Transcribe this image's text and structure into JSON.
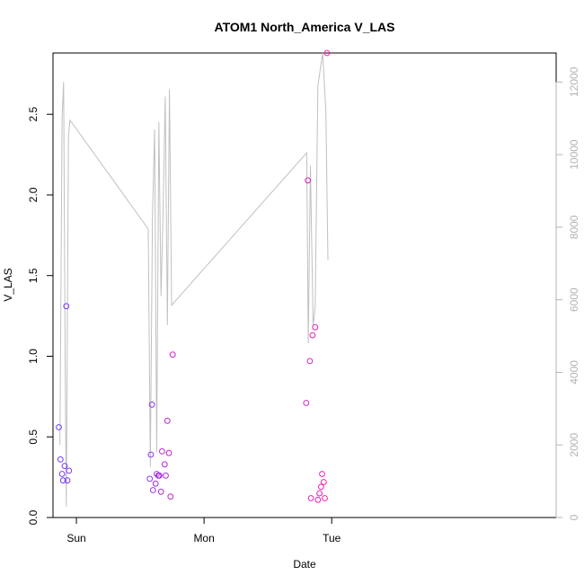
{
  "chart_data": {
    "type": "scatter",
    "title": "ATOM1 North_America V_LAS",
    "xlabel": "Date",
    "ylabel": "V_LAS",
    "x_axis": {
      "kind": "time",
      "range_hours": [
        -4.4,
        90.2
      ],
      "ticks": [
        {
          "label": "Sun",
          "hours": 0
        },
        {
          "label": "Mon",
          "hours": 24
        },
        {
          "label": "Tue",
          "hours": 48
        }
      ]
    },
    "y_left": {
      "range": [
        0,
        2.88
      ],
      "ticks": [
        0.0,
        0.5,
        1.0,
        1.5,
        2.0,
        2.5
      ],
      "tick_labels": [
        "0.0",
        "0.5",
        "1.0",
        "1.5",
        "2.0",
        "2.5"
      ]
    },
    "y_right": {
      "range": [
        0,
        12800
      ],
      "ticks": [
        0,
        2000,
        4000,
        6000,
        8000,
        10000,
        12000
      ],
      "tick_labels": [
        "0",
        "2000",
        "4000",
        "6000",
        "8000",
        "10000",
        "12000"
      ],
      "color": "#b3b3b3"
    },
    "grid": false,
    "colors": {
      "point_start": "#6a3bff",
      "point_end": "#ff1aa6",
      "line": "#c0c0c0"
    },
    "points": [
      {
        "x": -3.3,
        "y": 0.56
      },
      {
        "x": -3.0,
        "y": 0.36
      },
      {
        "x": -2.7,
        "y": 0.27
      },
      {
        "x": -2.5,
        "y": 0.23
      },
      {
        "x": -2.2,
        "y": 0.32
      },
      {
        "x": -1.9,
        "y": 1.31
      },
      {
        "x": -1.7,
        "y": 0.23
      },
      {
        "x": -1.4,
        "y": 0.29
      },
      {
        "x": 13.8,
        "y": 0.24
      },
      {
        "x": 14.0,
        "y": 0.39
      },
      {
        "x": 14.2,
        "y": 0.7
      },
      {
        "x": 14.4,
        "y": 0.17
      },
      {
        "x": 14.9,
        "y": 0.21
      },
      {
        "x": 15.1,
        "y": 0.27
      },
      {
        "x": 15.4,
        "y": 0.26
      },
      {
        "x": 15.6,
        "y": 0.26
      },
      {
        "x": 15.9,
        "y": 0.16
      },
      {
        "x": 16.1,
        "y": 0.41
      },
      {
        "x": 16.6,
        "y": 0.33
      },
      {
        "x": 16.8,
        "y": 0.26
      },
      {
        "x": 17.1,
        "y": 0.6
      },
      {
        "x": 17.4,
        "y": 0.4
      },
      {
        "x": 17.7,
        "y": 0.13
      },
      {
        "x": 18.1,
        "y": 1.01
      },
      {
        "x": 43.2,
        "y": 0.71
      },
      {
        "x": 43.5,
        "y": 2.09
      },
      {
        "x": 43.9,
        "y": 0.97
      },
      {
        "x": 44.1,
        "y": 0.12
      },
      {
        "x": 44.4,
        "y": 1.13
      },
      {
        "x": 44.9,
        "y": 1.18
      },
      {
        "x": 45.4,
        "y": 0.11
      },
      {
        "x": 45.7,
        "y": 0.15
      },
      {
        "x": 46.0,
        "y": 0.19
      },
      {
        "x": 46.2,
        "y": 0.27
      },
      {
        "x": 46.5,
        "y": 0.22
      },
      {
        "x": 46.7,
        "y": 0.12
      },
      {
        "x": 47.1,
        "y": 2.88
      }
    ],
    "line_right_axis": [
      {
        "x": -3.1,
        "y": 2000
      },
      {
        "x": -2.7,
        "y": 11000
      },
      {
        "x": -2.4,
        "y": 12000
      },
      {
        "x": -2.1,
        "y": 4000
      },
      {
        "x": -1.9,
        "y": 300
      },
      {
        "x": -1.5,
        "y": 10500
      },
      {
        "x": -1.2,
        "y": 10950
      },
      {
        "x": 13.5,
        "y": 7950
      },
      {
        "x": 13.9,
        "y": 1400
      },
      {
        "x": 14.3,
        "y": 8300
      },
      {
        "x": 14.7,
        "y": 10700
      },
      {
        "x": 15.1,
        "y": 1800
      },
      {
        "x": 15.5,
        "y": 10900
      },
      {
        "x": 15.9,
        "y": 6100
      },
      {
        "x": 16.3,
        "y": 8400
      },
      {
        "x": 16.7,
        "y": 11600
      },
      {
        "x": 17.1,
        "y": 5300
      },
      {
        "x": 17.5,
        "y": 11800
      },
      {
        "x": 17.9,
        "y": 5850
      },
      {
        "x": 43.3,
        "y": 10050
      },
      {
        "x": 43.6,
        "y": 4800
      },
      {
        "x": 44.0,
        "y": 9700
      },
      {
        "x": 44.5,
        "y": 5300
      },
      {
        "x": 44.9,
        "y": 5800
      },
      {
        "x": 45.4,
        "y": 11900
      },
      {
        "x": 46.3,
        "y": 12800
      },
      {
        "x": 46.9,
        "y": 11200
      },
      {
        "x": 47.3,
        "y": 7100
      }
    ]
  }
}
